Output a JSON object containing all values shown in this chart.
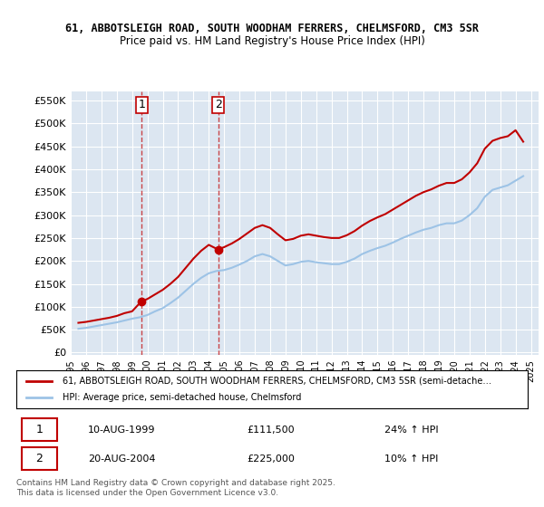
{
  "title1": "61, ABBOTSLEIGH ROAD, SOUTH WOODHAM FERRERS, CHELMSFORD, CM3 5SR",
  "title2": "Price paid vs. HM Land Registry's House Price Index (HPI)",
  "bg_color": "#ffffff",
  "plot_bg_color": "#dce6f1",
  "grid_color": "#ffffff",
  "red_color": "#c00000",
  "blue_color": "#9dc3e6",
  "purchase1_date": "10-AUG-1999",
  "purchase1_price": 111500,
  "purchase1_label": "24% ↑ HPI",
  "purchase2_date": "20-AUG-2004",
  "purchase2_price": 225000,
  "purchase2_label": "10% ↑ HPI",
  "ylabel_fmt": "£{0}K",
  "yticks": [
    0,
    50000,
    100000,
    150000,
    200000,
    250000,
    300000,
    350000,
    400000,
    450000,
    500000,
    550000
  ],
  "ylim": [
    -5000,
    570000
  ],
  "xlim_start": 1995.0,
  "xlim_end": 2025.5,
  "xticks": [
    1995,
    1996,
    1997,
    1998,
    1999,
    2000,
    2001,
    2002,
    2003,
    2004,
    2005,
    2006,
    2007,
    2008,
    2009,
    2010,
    2011,
    2012,
    2013,
    2014,
    2015,
    2016,
    2017,
    2018,
    2019,
    2020,
    2021,
    2022,
    2023,
    2024,
    2025
  ],
  "legend1": "61, ABBOTSLEIGH ROAD, SOUTH WOODHAM FERRERS, CHELMSFORD, CM3 5SR (semi-detache…",
  "legend2": "HPI: Average price, semi-detached house, Chelmsford",
  "footer": "Contains HM Land Registry data © Crown copyright and database right 2025.\nThis data is licensed under the Open Government Licence v3.0.",
  "hpi_years": [
    1995.5,
    1996.0,
    1996.5,
    1997.0,
    1997.5,
    1998.0,
    1998.5,
    1999.0,
    1999.5,
    2000.0,
    2000.5,
    2001.0,
    2001.5,
    2002.0,
    2002.5,
    2003.0,
    2003.5,
    2004.0,
    2004.5,
    2005.0,
    2005.5,
    2006.0,
    2006.5,
    2007.0,
    2007.5,
    2008.0,
    2008.5,
    2009.0,
    2009.5,
    2010.0,
    2010.5,
    2011.0,
    2011.5,
    2012.0,
    2012.5,
    2013.0,
    2013.5,
    2014.0,
    2014.5,
    2015.0,
    2015.5,
    2016.0,
    2016.5,
    2017.0,
    2017.5,
    2018.0,
    2018.5,
    2019.0,
    2019.5,
    2020.0,
    2020.5,
    2021.0,
    2021.5,
    2022.0,
    2022.5,
    2023.0,
    2023.5,
    2024.0,
    2024.5
  ],
  "hpi_values": [
    52000,
    54000,
    57000,
    60000,
    63000,
    66000,
    70000,
    74000,
    77000,
    82000,
    90000,
    97000,
    108000,
    120000,
    135000,
    150000,
    163000,
    173000,
    178000,
    180000,
    185000,
    192000,
    200000,
    210000,
    215000,
    210000,
    200000,
    190000,
    193000,
    198000,
    200000,
    197000,
    195000,
    193000,
    193000,
    198000,
    205000,
    215000,
    222000,
    228000,
    233000,
    240000,
    248000,
    255000,
    262000,
    268000,
    272000,
    278000,
    282000,
    282000,
    288000,
    300000,
    315000,
    340000,
    355000,
    360000,
    365000,
    375000,
    385000
  ],
  "price_years": [
    1995.5,
    1996.0,
    1996.5,
    1997.0,
    1997.5,
    1998.0,
    1998.5,
    1999.0,
    1999.6,
    2000.0,
    2000.5,
    2001.0,
    2001.5,
    2002.0,
    2002.5,
    2003.0,
    2003.5,
    2004.0,
    2004.6,
    2005.0,
    2005.5,
    2006.0,
    2006.5,
    2007.0,
    2007.5,
    2008.0,
    2008.5,
    2009.0,
    2009.5,
    2010.0,
    2010.5,
    2011.0,
    2011.5,
    2012.0,
    2012.5,
    2013.0,
    2013.5,
    2014.0,
    2014.5,
    2015.0,
    2015.5,
    2016.0,
    2016.5,
    2017.0,
    2017.5,
    2018.0,
    2018.5,
    2019.0,
    2019.5,
    2020.0,
    2020.5,
    2021.0,
    2021.5,
    2022.0,
    2022.5,
    2023.0,
    2023.5,
    2024.0,
    2024.5
  ],
  "price_values": [
    65000,
    67000,
    70000,
    73000,
    76000,
    80000,
    86000,
    90000,
    111500,
    117000,
    127000,
    137000,
    150000,
    165000,
    185000,
    205000,
    222000,
    235000,
    225000,
    230000,
    238000,
    248000,
    260000,
    272000,
    278000,
    272000,
    258000,
    245000,
    248000,
    255000,
    258000,
    255000,
    252000,
    250000,
    250000,
    256000,
    265000,
    277000,
    287000,
    295000,
    302000,
    312000,
    322000,
    332000,
    342000,
    350000,
    356000,
    364000,
    370000,
    370000,
    378000,
    393000,
    413000,
    445000,
    462000,
    468000,
    472000,
    485000,
    460000
  ]
}
